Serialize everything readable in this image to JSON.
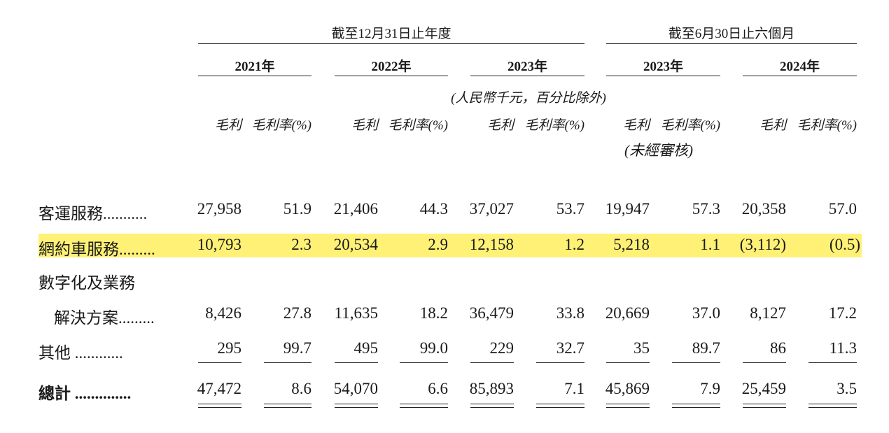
{
  "header": {
    "group_annual": "截至12月31日止年度",
    "group_interim": "截至6月30日止六個月",
    "years": [
      "2021年",
      "2022年",
      "2023年",
      "2023年",
      "2024年"
    ],
    "unit_note": "(人民幣千元，百分比除外)",
    "col_gross_profit": "毛利",
    "col_margin": "毛利率(%)",
    "unaudited": "(未經審核)"
  },
  "rows": [
    {
      "label": "客運服務...........",
      "values": [
        "27,958",
        "51.9",
        "21,406",
        "44.3",
        "37,027",
        "53.7",
        "19,947",
        "57.3",
        "20,358",
        "57.0"
      ]
    },
    {
      "label": "網約車服務.........",
      "values": [
        "10,793",
        "2.3",
        "20,534",
        "2.9",
        "12,158",
        "1.2",
        "5,218",
        "1.1",
        "(3,112)",
        "(0.5)"
      ]
    },
    {
      "label": "數字化及業務",
      "values": []
    },
    {
      "label": "解決方案.........",
      "values": [
        "8,426",
        "27.8",
        "11,635",
        "18.2",
        "36,479",
        "33.8",
        "20,669",
        "37.0",
        "8,127",
        "17.2"
      ]
    },
    {
      "label": "其他 ............",
      "values": [
        "295",
        "99.7",
        "495",
        "99.0",
        "229",
        "32.7",
        "35",
        "89.7",
        "86",
        "11.3"
      ]
    },
    {
      "label": "總計 ..............",
      "values": [
        "47,472",
        "8.6",
        "54,070",
        "6.6",
        "85,893",
        "7.1",
        "45,869",
        "7.9",
        "25,459",
        "3.5"
      ]
    }
  ],
  "colors": {
    "highlight": "#fff176",
    "text": "#1a1a1a"
  }
}
